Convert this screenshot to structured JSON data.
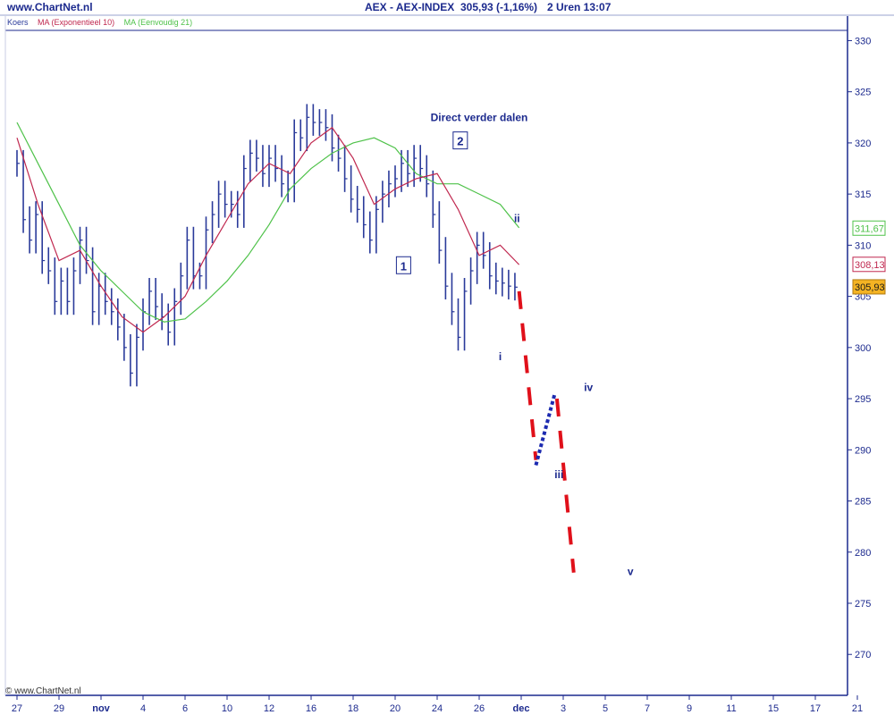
{
  "header": {
    "site": "www.ChartNet.nl",
    "title": "AEX - AEX-INDEX",
    "price": "305,93 (-1,16%)",
    "interval_time": "2 Uren  13:07"
  },
  "legend": {
    "koers": "Koers",
    "ma_exp": "MA (Exponentieel 10)",
    "ma_simple": "MA (Eenvoudig 21)"
  },
  "copyright": "© www.ChartNet.nl",
  "colors": {
    "axis": "#1c2a8e",
    "bars": "#2a3a9a",
    "ma_exp": "#c0284f",
    "ma_simple": "#4fc24a",
    "projection_red": "#e0101a",
    "projection_blue": "#1c2ab0",
    "label_text": "#1c2a8e",
    "last_price_bg": "#f4b323"
  },
  "chart_data": {
    "type": "line",
    "ylim": [
      266,
      331
    ],
    "y_ticks": [
      270,
      275,
      280,
      285,
      290,
      295,
      300,
      305,
      310,
      315,
      320,
      325,
      330
    ],
    "x_tick_labels": [
      "27",
      "29",
      "nov",
      "4",
      "6",
      "10",
      "12",
      "16",
      "18",
      "20",
      "24",
      "26",
      "dec",
      "3",
      "5",
      "7",
      "9",
      "11",
      "15",
      "17",
      "21"
    ],
    "last_values": {
      "ma_simple": "311,67",
      "ma_exp": "308,13",
      "koers": "305,93"
    },
    "series": [
      {
        "name": "MA (Eenvoudig 21)",
        "x": [
          0,
          0.5,
          1.0,
          1.5,
          2.0,
          2.5,
          3.0,
          3.5,
          4.0,
          4.5,
          5.0,
          5.5,
          6.0,
          6.5,
          7.0,
          7.5,
          8.0,
          8.5,
          9.0,
          9.5,
          10.0,
          10.5,
          11.0,
          11.5,
          11.95
        ],
        "values": [
          322.0,
          318.0,
          314.0,
          310.0,
          307.5,
          305.5,
          303.5,
          302.5,
          302.8,
          304.5,
          306.5,
          309.0,
          312.0,
          315.5,
          317.5,
          319.0,
          320.0,
          320.5,
          319.5,
          317.0,
          316.0,
          316.0,
          315.0,
          314.0,
          311.7
        ]
      },
      {
        "name": "MA (Exponentieel 10)",
        "x": [
          0,
          0.5,
          1.0,
          1.5,
          2.0,
          2.5,
          3.0,
          3.5,
          4.0,
          4.5,
          5.0,
          5.5,
          6.0,
          6.5,
          7.0,
          7.5,
          8.0,
          8.5,
          9.0,
          9.5,
          10.0,
          10.5,
          11.0,
          11.5,
          11.95
        ],
        "values": [
          320.5,
          314.0,
          308.5,
          309.5,
          306.0,
          303.0,
          301.5,
          303.0,
          305.0,
          309.0,
          312.5,
          316.0,
          318.0,
          317.0,
          320.0,
          321.5,
          318.5,
          314.0,
          315.5,
          316.5,
          317.0,
          313.5,
          309.0,
          310.0,
          308.1
        ]
      }
    ],
    "koers_bars": {
      "x": [
        0.0,
        0.15,
        0.3,
        0.45,
        0.6,
        0.75,
        0.9,
        1.05,
        1.2,
        1.35,
        1.5,
        1.65,
        1.8,
        1.95,
        2.1,
        2.25,
        2.4,
        2.55,
        2.7,
        2.85,
        3.0,
        3.15,
        3.3,
        3.45,
        3.6,
        3.75,
        3.9,
        4.05,
        4.2,
        4.35,
        4.5,
        4.65,
        4.8,
        4.95,
        5.1,
        5.25,
        5.4,
        5.55,
        5.7,
        5.85,
        6.0,
        6.15,
        6.3,
        6.45,
        6.6,
        6.75,
        6.9,
        7.05,
        7.2,
        7.35,
        7.5,
        7.65,
        7.8,
        7.95,
        8.1,
        8.25,
        8.4,
        8.55,
        8.7,
        8.85,
        9.0,
        9.15,
        9.3,
        9.45,
        9.6,
        9.75,
        9.9,
        10.05,
        10.2,
        10.35,
        10.5,
        10.65,
        10.8,
        10.95,
        11.1,
        11.25,
        11.4,
        11.55,
        11.7,
        11.85
      ],
      "values": [
        318.0,
        312.5,
        310.5,
        313.0,
        308.5,
        307.5,
        304.5,
        306.5,
        304.5,
        307.5,
        310.5,
        308.5,
        303.5,
        306.0,
        304.5,
        303.5,
        302.0,
        300.0,
        297.5,
        301.0,
        303.5,
        305.5,
        304.0,
        303.0,
        301.5,
        304.5,
        307.0,
        310.5,
        307.0,
        307.0,
        311.5,
        313.0,
        315.0,
        314.0,
        314.0,
        313.0,
        317.5,
        319.0,
        318.5,
        317.0,
        318.5,
        317.5,
        316.0,
        315.5,
        321.0,
        320.5,
        322.5,
        322.0,
        322.0,
        321.5,
        319.5,
        318.5,
        316.5,
        314.5,
        313.5,
        312.0,
        310.5,
        313.5,
        315.0,
        316.0,
        316.5,
        318.0,
        317.0,
        318.5,
        317.5,
        316.0,
        313.0,
        309.5,
        306.0,
        303.5,
        301.0,
        305.5,
        307.5,
        310.0,
        309.0,
        307.0,
        306.5,
        306.3,
        306.0,
        305.9
      ]
    },
    "projection": {
      "red_dashed_segments": [
        {
          "x": [
            11.95,
            12.35
          ],
          "y": [
            305.5,
            289.0
          ]
        },
        {
          "x": [
            12.85,
            13.25
          ],
          "y": [
            295.0,
            278.0
          ]
        }
      ],
      "blue_dotted_segments": [
        {
          "x": [
            12.35,
            12.8
          ],
          "y": [
            288.5,
            295.5
          ]
        }
      ]
    },
    "annotations": [
      {
        "text": "Direct  verder dalen",
        "x": 11.0,
        "y": 322.5,
        "boxed": false,
        "bold": true
      },
      {
        "text": "1",
        "x": 9.2,
        "y": 308.0,
        "boxed": true
      },
      {
        "text": "2",
        "x": 10.55,
        "y": 320.2,
        "boxed": true
      },
      {
        "text": "i",
        "x": 11.5,
        "y": 299.1,
        "boxed": false
      },
      {
        "text": "ii",
        "x": 11.9,
        "y": 312.6,
        "boxed": false
      },
      {
        "text": "iii",
        "x": 12.9,
        "y": 287.6,
        "boxed": false
      },
      {
        "text": "iv",
        "x": 13.6,
        "y": 296.1,
        "boxed": false
      },
      {
        "text": "v",
        "x": 14.6,
        "y": 278.1,
        "boxed": false
      }
    ]
  }
}
